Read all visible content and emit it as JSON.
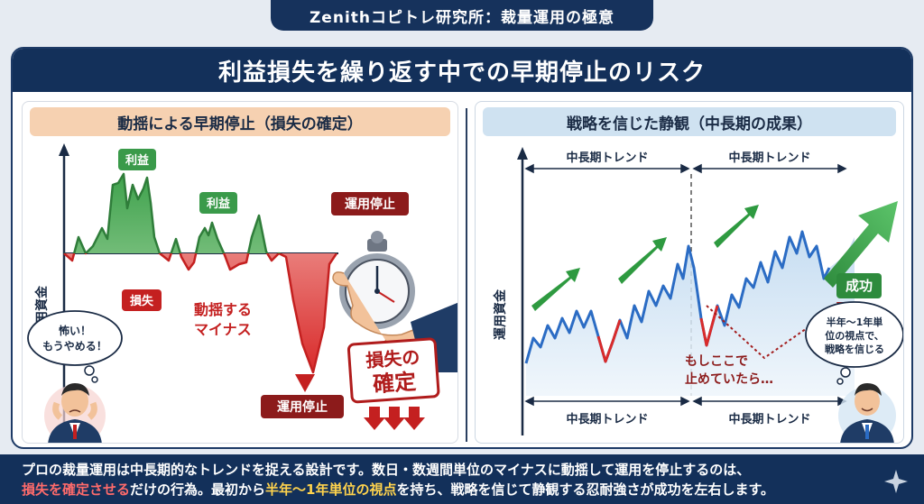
{
  "header": {
    "title": "Zenithコピトレ研究所：裁量運用の極意"
  },
  "banner": {
    "title": "利益損失を繰り返す中での早期停止のリスク"
  },
  "left": {
    "title": "動揺による早期停止（損失の確定）",
    "y_axis": "運用資金",
    "profit_label_1": "利益",
    "profit_label_2": "利益",
    "loss_label": "損失",
    "minus_text_1": "動揺する",
    "minus_text_2": "マイナス",
    "stop_label_top": "運用停止",
    "stop_label_bottom": "運用停止",
    "bubble_1": "怖い！",
    "bubble_2": "もうやめる！",
    "stamp_1": "損失の",
    "stamp_2": "確定"
  },
  "right": {
    "title": "戦略を信じた静観（中長期の成果）",
    "y_axis": "運用資金",
    "trend_top_1": "中長期トレンド",
    "trend_top_2": "中長期トレンド",
    "trend_bottom_1": "中長期トレンド",
    "trend_bottom_2": "中長期トレンド",
    "success_label": "成功",
    "what_if_1": "もしここで",
    "what_if_2": "止めていたら…",
    "bubble_1": "半年〜1年単",
    "bubble_2": "位の視点で、",
    "bubble_3": "戦略を信じる"
  },
  "footer": {
    "line1": "プロの裁量運用は中長期的なトレンドを捉える設計です。数日・数週間単位のマイナスに動揺して運用を停止するのは、",
    "line2_hl1": "損失を確定させる",
    "line2_mid": "だけの行為。最初から",
    "line2_hl2": "半年〜1年単位の視点",
    "line2_end": "を持ち、戦略を信じて静観する忍耐強さが成功を左右します。"
  },
  "colors": {
    "navy": "#13305a",
    "profit_green": "#3a9a4a",
    "loss_red": "#d92b2b",
    "chart_blue": "#2b6cc4",
    "success_green": "#2e8b3d"
  }
}
